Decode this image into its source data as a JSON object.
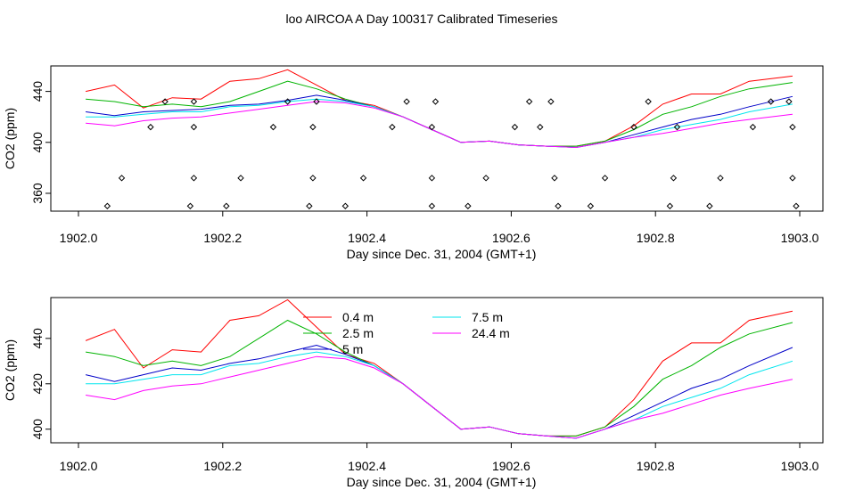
{
  "title": "loo AIRCOA A  Day 100317  Calibrated Timeseries",
  "colors": {
    "0.4 m": "#ff0000",
    "2.5 m": "#00b400",
    "5 m": "#0000c8",
    "7.5 m": "#00e5ee",
    "24.4 m": "#ff00ff",
    "points": "#000000"
  },
  "chart_data": [
    {
      "type": "line",
      "panel": "top",
      "xlabel": "Day since Dec. 31, 2004 (GMT+1)",
      "ylabel": "CO2 (ppm)",
      "xlim": [
        1902.0,
        1903.0
      ],
      "ylim": [
        346,
        460
      ],
      "xticks": [
        1902.0,
        1902.2,
        1902.4,
        1902.6,
        1902.8,
        1903.0
      ],
      "xtick_labels": [
        "1902.0",
        "1902.2",
        "1902.4",
        "1902.6",
        "1902.8",
        "1903.0"
      ],
      "yticks": [
        360,
        400,
        440
      ],
      "ytick_labels": [
        "360",
        "400",
        "440"
      ],
      "legend": null,
      "series": [
        {
          "name": "0.4 m",
          "x": [
            1902.01,
            1902.05,
            1902.09,
            1902.13,
            1902.17,
            1902.21,
            1902.25,
            1902.29,
            1902.33,
            1902.37,
            1902.41,
            1902.45,
            1902.49,
            1902.53,
            1902.57,
            1902.61,
            1902.65,
            1902.69,
            1902.73,
            1902.77,
            1902.81,
            1902.85,
            1902.89,
            1902.93,
            1902.99
          ],
          "y": [
            440,
            445,
            427,
            435,
            434,
            448,
            450,
            457,
            445,
            433,
            429,
            420,
            410,
            400,
            401,
            398,
            397,
            397,
            401,
            413,
            430,
            438,
            438,
            448,
            452
          ]
        },
        {
          "name": "2.5 m",
          "x": [
            1902.01,
            1902.05,
            1902.09,
            1902.13,
            1902.17,
            1902.21,
            1902.25,
            1902.29,
            1902.33,
            1902.37,
            1902.41,
            1902.45,
            1902.49,
            1902.53,
            1902.57,
            1902.61,
            1902.65,
            1902.69,
            1902.73,
            1902.77,
            1902.81,
            1902.85,
            1902.89,
            1902.93,
            1902.99
          ],
          "y": [
            434,
            432,
            428,
            430,
            428,
            432,
            440,
            448,
            442,
            434,
            428,
            420,
            410,
            400,
            401,
            398,
            397,
            397,
            401,
            410,
            422,
            428,
            436,
            442,
            447
          ]
        },
        {
          "name": "5 m",
          "x": [
            1902.01,
            1902.05,
            1902.09,
            1902.13,
            1902.17,
            1902.21,
            1902.25,
            1902.29,
            1902.33,
            1902.37,
            1902.41,
            1902.45,
            1902.49,
            1902.53,
            1902.57,
            1902.61,
            1902.65,
            1902.69,
            1902.73,
            1902.77,
            1902.81,
            1902.85,
            1902.89,
            1902.93,
            1902.99
          ],
          "y": [
            424,
            421,
            424,
            425,
            426,
            429,
            430,
            433,
            437,
            433,
            428,
            420,
            410,
            400,
            401,
            398,
            397,
            396,
            400,
            406,
            412,
            418,
            422,
            428,
            436
          ]
        },
        {
          "name": "7.5 m",
          "x": [
            1902.01,
            1902.05,
            1902.09,
            1902.13,
            1902.17,
            1902.21,
            1902.25,
            1902.29,
            1902.33,
            1902.37,
            1902.41,
            1902.45,
            1902.49,
            1902.53,
            1902.57,
            1902.61,
            1902.65,
            1902.69,
            1902.73,
            1902.77,
            1902.81,
            1902.85,
            1902.89,
            1902.93,
            1902.99
          ],
          "y": [
            420,
            420,
            422,
            424,
            424,
            428,
            429,
            432,
            434,
            432,
            428,
            420,
            410,
            400,
            401,
            398,
            397,
            396,
            400,
            404,
            410,
            414,
            418,
            424,
            430
          ]
        },
        {
          "name": "24.4 m",
          "x": [
            1902.01,
            1902.05,
            1902.09,
            1902.13,
            1902.17,
            1902.21,
            1902.25,
            1902.29,
            1902.33,
            1902.37,
            1902.41,
            1902.45,
            1902.49,
            1902.53,
            1902.57,
            1902.61,
            1902.65,
            1902.69,
            1902.73,
            1902.77,
            1902.81,
            1902.85,
            1902.89,
            1902.93,
            1902.99
          ],
          "y": [
            415,
            413,
            417,
            419,
            420,
            423,
            426,
            429,
            432,
            431,
            427,
            420,
            410,
            400,
            401,
            398,
            397,
            396,
            400,
            404,
            407,
            411,
            415,
            418,
            422
          ]
        },
        {
          "name": "points",
          "style": "points",
          "x": [
            1902.04,
            1902.06,
            1902.1,
            1902.12,
            1902.155,
            1902.16,
            1902.16,
            1902.16,
            1902.205,
            1902.225,
            1902.27,
            1902.29,
            1902.32,
            1902.325,
            1902.325,
            1902.33,
            1902.37,
            1902.395,
            1902.435,
            1902.455,
            1902.49,
            1902.49,
            1902.49,
            1902.495,
            1902.54,
            1902.565,
            1902.605,
            1902.625,
            1902.64,
            1902.655,
            1902.66,
            1902.665,
            1902.71,
            1902.73,
            1902.77,
            1902.79,
            1902.82,
            1902.825,
            1902.83,
            1902.875,
            1902.89,
            1902.935,
            1902.96,
            1902.985,
            1902.99,
            1902.99,
            1902.995
          ],
          "y": [
            350,
            372,
            412,
            432,
            350,
            372,
            412,
            432,
            350,
            372,
            412,
            432,
            350,
            372,
            412,
            432,
            350,
            372,
            412,
            432,
            350,
            372,
            412,
            432,
            350,
            372,
            412,
            432,
            412,
            432,
            372,
            350,
            350,
            372,
            412,
            432,
            350,
            372,
            412,
            350,
            372,
            412,
            432,
            432,
            412,
            372,
            350
          ]
        }
      ]
    },
    {
      "type": "line",
      "panel": "bottom",
      "xlabel": "Day since Dec. 31, 2004 (GMT+1)",
      "ylabel": "CO2 (ppm)",
      "xlim": [
        1902.0,
        1903.0
      ],
      "ylim": [
        394,
        458
      ],
      "xticks": [
        1902.0,
        1902.2,
        1902.4,
        1902.6,
        1902.8,
        1903.0
      ],
      "xtick_labels": [
        "1902.0",
        "1902.2",
        "1902.4",
        "1902.6",
        "1902.8",
        "1903.0"
      ],
      "yticks": [
        400,
        420,
        440
      ],
      "ytick_labels": [
        "400",
        "420",
        "440"
      ],
      "legend": "top-center",
      "series": [
        {
          "name": "0.4 m",
          "x": [
            1902.01,
            1902.05,
            1902.09,
            1902.13,
            1902.17,
            1902.21,
            1902.25,
            1902.29,
            1902.33,
            1902.37,
            1902.41,
            1902.45,
            1902.49,
            1902.53,
            1902.57,
            1902.61,
            1902.65,
            1902.69,
            1902.73,
            1902.77,
            1902.81,
            1902.85,
            1902.89,
            1902.93,
            1902.99
          ],
          "y": [
            439,
            444,
            427,
            435,
            434,
            448,
            450,
            457,
            445,
            433,
            429,
            420,
            410,
            400,
            401,
            398,
            397,
            397,
            401,
            413,
            430,
            438,
            438,
            448,
            452
          ]
        },
        {
          "name": "2.5 m",
          "x": [
            1902.01,
            1902.05,
            1902.09,
            1902.13,
            1902.17,
            1902.21,
            1902.25,
            1902.29,
            1902.33,
            1902.37,
            1902.41,
            1902.45,
            1902.49,
            1902.53,
            1902.57,
            1902.61,
            1902.65,
            1902.69,
            1902.73,
            1902.77,
            1902.81,
            1902.85,
            1902.89,
            1902.93,
            1902.99
          ],
          "y": [
            434,
            432,
            428,
            430,
            428,
            432,
            440,
            448,
            442,
            434,
            428,
            420,
            410,
            400,
            401,
            398,
            397,
            397,
            401,
            410,
            422,
            428,
            436,
            442,
            447
          ]
        },
        {
          "name": "5 m",
          "x": [
            1902.01,
            1902.05,
            1902.09,
            1902.13,
            1902.17,
            1902.21,
            1902.25,
            1902.29,
            1902.33,
            1902.37,
            1902.41,
            1902.45,
            1902.49,
            1902.53,
            1902.57,
            1902.61,
            1902.65,
            1902.69,
            1902.73,
            1902.77,
            1902.81,
            1902.85,
            1902.89,
            1902.93,
            1902.99
          ],
          "y": [
            424,
            421,
            424,
            427,
            426,
            429,
            431,
            434,
            437,
            433,
            428,
            420,
            410,
            400,
            401,
            398,
            397,
            396,
            400,
            406,
            412,
            418,
            422,
            428,
            436
          ]
        },
        {
          "name": "7.5 m",
          "x": [
            1902.01,
            1902.05,
            1902.09,
            1902.13,
            1902.17,
            1902.21,
            1902.25,
            1902.29,
            1902.33,
            1902.37,
            1902.41,
            1902.45,
            1902.49,
            1902.53,
            1902.57,
            1902.61,
            1902.65,
            1902.69,
            1902.73,
            1902.77,
            1902.81,
            1902.85,
            1902.89,
            1902.93,
            1902.99
          ],
          "y": [
            420,
            420,
            422,
            424,
            424,
            428,
            429,
            432,
            434,
            432,
            428,
            420,
            410,
            400,
            401,
            398,
            397,
            396,
            400,
            404,
            410,
            414,
            418,
            424,
            430
          ]
        },
        {
          "name": "24.4 m",
          "x": [
            1902.01,
            1902.05,
            1902.09,
            1902.13,
            1902.17,
            1902.21,
            1902.25,
            1902.29,
            1902.33,
            1902.37,
            1902.41,
            1902.45,
            1902.49,
            1902.53,
            1902.57,
            1902.61,
            1902.65,
            1902.69,
            1902.73,
            1902.77,
            1902.81,
            1902.85,
            1902.89,
            1902.93,
            1902.99
          ],
          "y": [
            415,
            413,
            417,
            419,
            420,
            423,
            426,
            429,
            432,
            431,
            427,
            420,
            410,
            400,
            401,
            398,
            397,
            396,
            400,
            404,
            407,
            411,
            415,
            418,
            422
          ]
        }
      ]
    }
  ]
}
